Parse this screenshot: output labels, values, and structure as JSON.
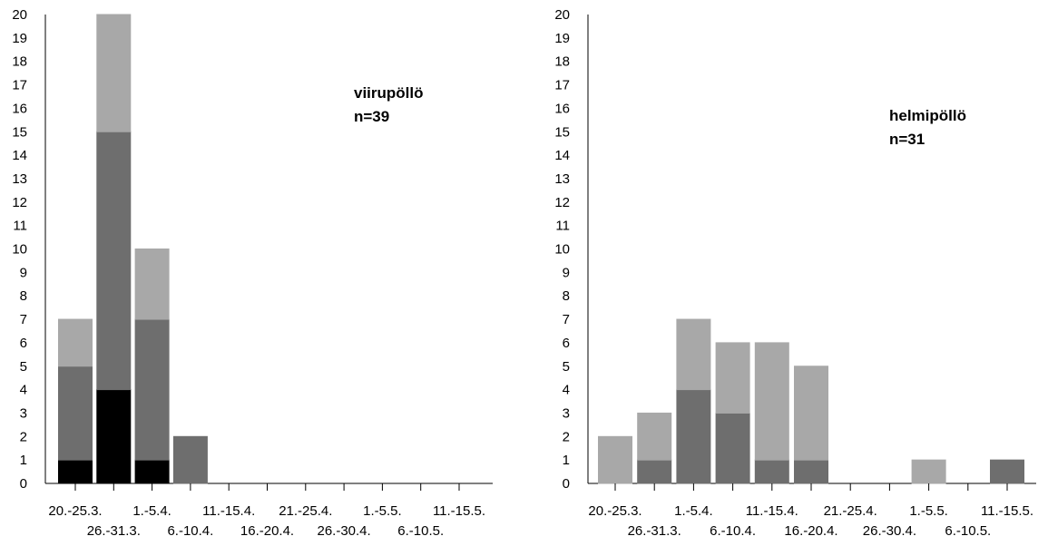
{
  "chart_data": [
    {
      "type": "bar",
      "stacked": true,
      "title": "viirupöllö",
      "subtitle": "n=39",
      "xlabel": "",
      "ylabel": "",
      "ylim": [
        0,
        20
      ],
      "yticks": [
        0,
        1,
        2,
        3,
        4,
        5,
        6,
        7,
        8,
        9,
        10,
        11,
        12,
        13,
        14,
        15,
        16,
        17,
        18,
        19,
        20
      ],
      "categories": [
        "20.-25.3.",
        "26.-31.3.",
        "1.-5.4.",
        "6.-10.4.",
        "11.-15.4.",
        "16.-20.4.",
        "21.-25.4.",
        "26.-30.4.",
        "1.-5.5.",
        "6.-10.5.",
        "11.-15.5."
      ],
      "series": [
        {
          "color": "#000000",
          "values": [
            1,
            4,
            1,
            0,
            0,
            0,
            0,
            0,
            0,
            0,
            0
          ]
        },
        {
          "color": "#6e6e6e",
          "values": [
            4,
            11,
            6,
            2,
            0,
            0,
            0,
            0,
            0,
            0,
            0
          ]
        },
        {
          "color": "#a8a8a8",
          "values": [
            2,
            5,
            3,
            0,
            0,
            0,
            0,
            0,
            0,
            0,
            0
          ]
        }
      ],
      "grid": false
    },
    {
      "type": "bar",
      "stacked": true,
      "title": "helmipöllö",
      "subtitle": "n=31",
      "xlabel": "",
      "ylabel": "",
      "ylim": [
        0,
        20
      ],
      "yticks": [
        0,
        1,
        2,
        3,
        4,
        5,
        6,
        7,
        8,
        9,
        10,
        11,
        12,
        13,
        14,
        15,
        16,
        17,
        18,
        19,
        20
      ],
      "categories": [
        "20.-25.3.",
        "26.-31.3.",
        "1.-5.4.",
        "6.-10.4.",
        "11.-15.4.",
        "16.-20.4.",
        "21.-25.4.",
        "26.-30.4.",
        "1.-5.5.",
        "6.-10.5.",
        "11.-15.5."
      ],
      "series": [
        {
          "color": "#000000",
          "values": [
            0,
            0,
            0,
            0,
            0,
            0,
            0,
            0,
            0,
            0,
            0
          ]
        },
        {
          "color": "#6e6e6e",
          "values": [
            0,
            1,
            4,
            3,
            1,
            1,
            0,
            0,
            0,
            0,
            1
          ]
        },
        {
          "color": "#a8a8a8",
          "values": [
            2,
            2,
            3,
            3,
            5,
            4,
            0,
            0,
            1,
            0,
            0
          ]
        }
      ],
      "grid": false
    }
  ]
}
